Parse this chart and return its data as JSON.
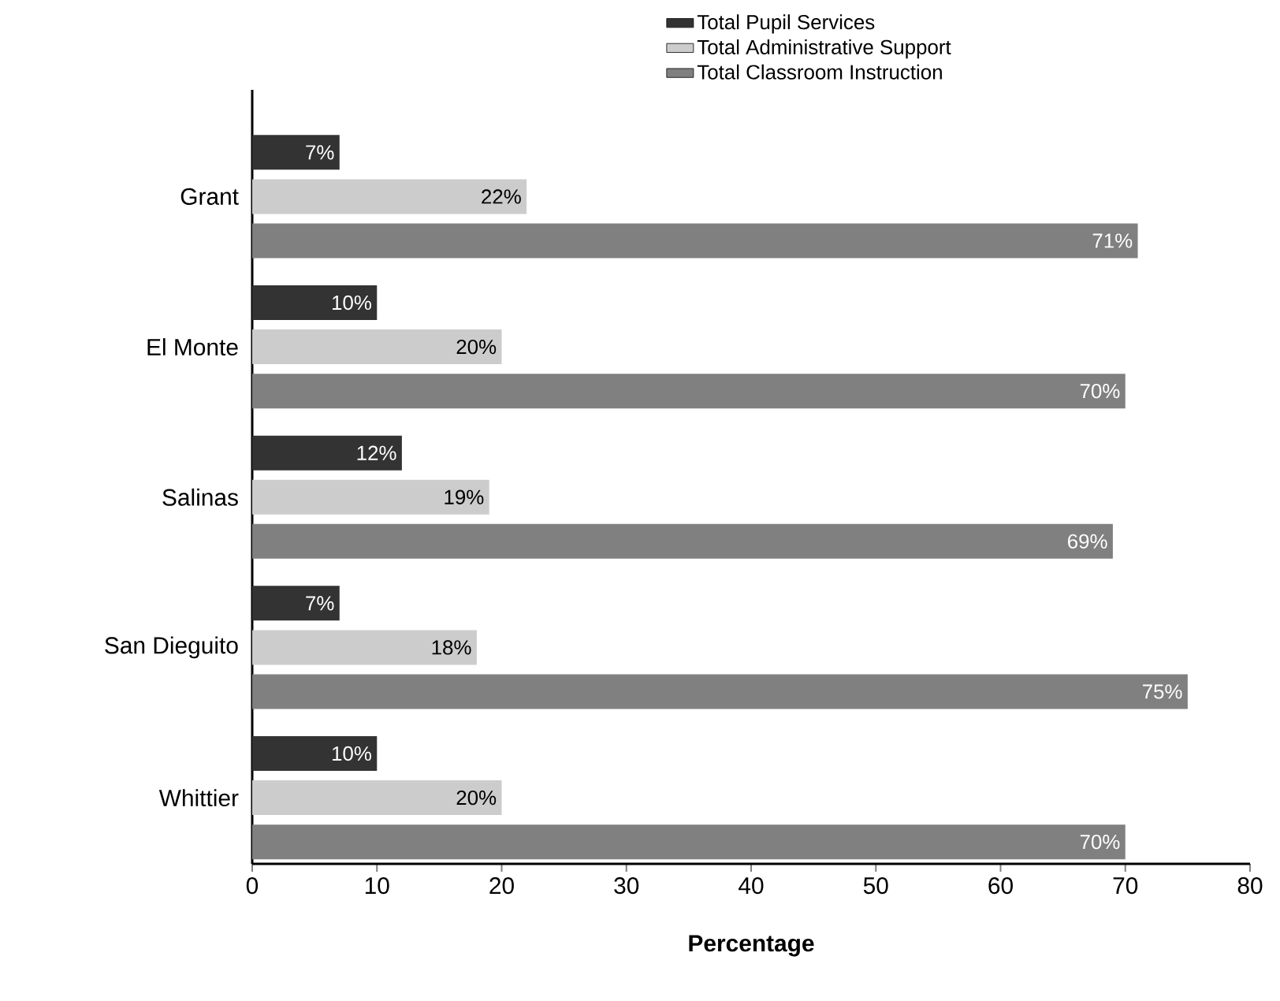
{
  "chart_data": {
    "type": "bar",
    "orientation": "horizontal",
    "xlabel": "Percentage",
    "categories": [
      "Grant",
      "El Monte",
      "Salinas",
      "San Dieguito",
      "Whittier"
    ],
    "series": [
      {
        "name": "Total Pupil Services",
        "color": "#333333",
        "values": [
          7,
          10,
          12,
          7,
          10
        ],
        "value_labels": [
          "7%",
          "10%",
          "12%",
          "7%",
          "10%"
        ]
      },
      {
        "name": "Total Administrative Support",
        "color": "#cccccc",
        "values": [
          22,
          20,
          19,
          18,
          20
        ],
        "value_labels": [
          "22%",
          "20%",
          "19%",
          "18%",
          "20%"
        ]
      },
      {
        "name": "Total Classroom Instruction",
        "color": "#808080",
        "values": [
          71,
          70,
          69,
          75,
          70
        ],
        "value_labels": [
          "71%",
          "70%",
          "69%",
          "75%",
          "70%"
        ]
      }
    ],
    "xlim": [
      0,
      80
    ],
    "xticks": [
      0,
      10,
      20,
      30,
      40,
      50,
      60,
      70,
      80
    ],
    "legend": "top right"
  }
}
